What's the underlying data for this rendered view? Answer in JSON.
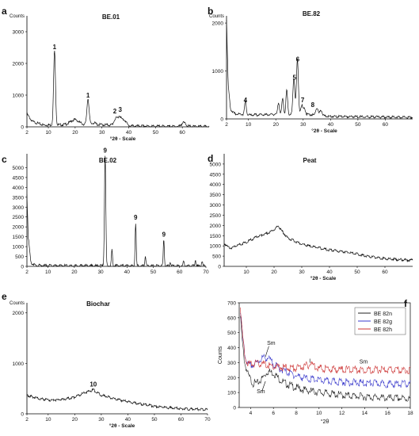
{
  "figure": {
    "panels": [
      {
        "letter": "a",
        "title": "BE.01",
        "ylabel": "Counts",
        "xlabel": "°2θ - Scale",
        "xlim": [
          2,
          70
        ],
        "ylim": [
          0,
          3500
        ],
        "xticks": [
          "2",
          "10",
          "20",
          "30",
          "40",
          "50",
          "60"
        ],
        "yticks": [
          "0",
          "1000",
          "2000",
          "3000"
        ],
        "baseline": [
          [
            2,
            420
          ],
          [
            4,
            180
          ],
          [
            8,
            70
          ],
          [
            12,
            70
          ],
          [
            20,
            90
          ],
          [
            30,
            80
          ],
          [
            40,
            40
          ],
          [
            50,
            30
          ],
          [
            70,
            20
          ]
        ],
        "peaks": [
          [
            12.3,
            2350,
            0.35
          ],
          [
            24.8,
            820,
            0.4
          ],
          [
            19.8,
            150,
            1.5
          ],
          [
            35.0,
            180,
            0.6
          ],
          [
            36.5,
            280,
            0.7
          ],
          [
            38.3,
            180,
            0.8
          ],
          [
            60.5,
            120,
            0.8
          ],
          [
            27.0,
            60,
            0.6
          ]
        ],
        "labels": [
          {
            "x": 12.3,
            "y": 2350,
            "text": "1"
          },
          {
            "x": 24.8,
            "y": 820,
            "text": "1"
          },
          {
            "x": 34.8,
            "y": 330,
            "text": "2"
          },
          {
            "x": 36.8,
            "y": 380,
            "text": "3"
          }
        ]
      },
      {
        "letter": "b",
        "title": "BE.82",
        "ylabel": "Counts",
        "xlabel": "°2θ - Scale",
        "xlim": [
          2,
          70
        ],
        "ylim": [
          0,
          2150
        ],
        "xticks": [
          "2",
          "10",
          "20",
          "30",
          "40",
          "50",
          "60"
        ],
        "yticks": [
          "0",
          "1000",
          "2000"
        ],
        "baseline": [
          [
            2,
            2100
          ],
          [
            2.6,
            700
          ],
          [
            3.5,
            200
          ],
          [
            5,
            120
          ],
          [
            10,
            90
          ],
          [
            20,
            100
          ],
          [
            30,
            110
          ],
          [
            40,
            60
          ],
          [
            70,
            40
          ]
        ],
        "peaks": [
          [
            8.9,
            280,
            0.3
          ],
          [
            21.0,
            260,
            0.3
          ],
          [
            22.5,
            330,
            0.3
          ],
          [
            24.0,
            500,
            0.3
          ],
          [
            26.6,
            750,
            0.35
          ],
          [
            27.9,
            1130,
            0.35
          ],
          [
            29.5,
            180,
            0.4
          ],
          [
            30.5,
            120,
            0.3
          ],
          [
            35.0,
            160,
            0.4
          ],
          [
            36.5,
            120,
            0.4
          ]
        ],
        "labels": [
          {
            "x": 8.9,
            "y": 280,
            "text": "4"
          },
          {
            "x": 26.8,
            "y": 750,
            "text": "5"
          },
          {
            "x": 28.0,
            "y": 1130,
            "text": "6"
          },
          {
            "x": 29.8,
            "y": 280,
            "text": "7"
          },
          {
            "x": 33.5,
            "y": 180,
            "text": "8"
          }
        ]
      },
      {
        "letter": "c",
        "title": "BE.02",
        "ylabel": "",
        "xlabel": "",
        "xlim": [
          2,
          70
        ],
        "ylim": [
          0,
          5700
        ],
        "xticks": [
          "2",
          "10",
          "20",
          "30",
          "40",
          "50",
          "60",
          "70"
        ],
        "yticks": [
          "0",
          "500",
          "1000",
          "1500",
          "2000",
          "2500",
          "3000",
          "3500",
          "4000",
          "4500",
          "5000"
        ],
        "baseline": [
          [
            2,
            3700
          ],
          [
            2.5,
            1500
          ],
          [
            3.5,
            200
          ],
          [
            5,
            80
          ],
          [
            10,
            60
          ],
          [
            40,
            50
          ],
          [
            70,
            40
          ]
        ],
        "peaks": [
          [
            31.7,
            5600,
            0.25
          ],
          [
            34.3,
            800,
            0.2
          ],
          [
            43.3,
            2200,
            0.2
          ],
          [
            47.0,
            500,
            0.2
          ],
          [
            54.0,
            1350,
            0.2
          ],
          [
            56.5,
            200,
            0.2
          ],
          [
            61.5,
            250,
            0.2
          ],
          [
            66.0,
            300,
            0.2
          ],
          [
            68.5,
            250,
            0.2
          ]
        ],
        "labels": [
          {
            "x": 31.7,
            "y": 5600,
            "text": "9"
          },
          {
            "x": 43.3,
            "y": 2200,
            "text": "9"
          },
          {
            "x": 54.0,
            "y": 1350,
            "text": "9"
          }
        ]
      },
      {
        "letter": "d",
        "title": "Peat",
        "ylabel": "",
        "xlabel": "°2θ - Scale",
        "xlim": [
          2,
          70
        ],
        "ylim": [
          0,
          5500
        ],
        "xticks": [
          "10",
          "20",
          "30",
          "40",
          "50",
          "60"
        ],
        "yticks": [
          "0",
          "500",
          "1000",
          "1500",
          "2000",
          "2500",
          "3000",
          "3500",
          "4000",
          "4500",
          "5000"
        ],
        "baseline": [
          [
            2,
            1150
          ],
          [
            4,
            900
          ],
          [
            6,
            1000
          ],
          [
            10,
            1200
          ],
          [
            14,
            1480
          ],
          [
            18,
            1650
          ],
          [
            20,
            1800
          ],
          [
            21.5,
            2000
          ],
          [
            22.5,
            1800
          ],
          [
            25,
            1400
          ],
          [
            30,
            1100
          ],
          [
            35,
            950
          ],
          [
            40,
            820
          ],
          [
            45,
            740
          ],
          [
            50,
            620
          ],
          [
            55,
            480
          ],
          [
            60,
            400
          ],
          [
            65,
            350
          ],
          [
            70,
            320
          ]
        ],
        "peaks": [],
        "labels": []
      },
      {
        "letter": "e",
        "title": "Biochar",
        "ylabel": "Counts",
        "xlabel": "°2θ - Scale",
        "xlim": [
          2,
          70
        ],
        "ylim": [
          0,
          2200
        ],
        "xticks": [
          "2",
          "10",
          "20",
          "30",
          "40",
          "50",
          "60",
          "70"
        ],
        "yticks": [
          "0",
          "1000",
          "2000"
        ],
        "baseline": [
          [
            2,
            380
          ],
          [
            5,
            330
          ],
          [
            10,
            280
          ],
          [
            15,
            290
          ],
          [
            20,
            340
          ],
          [
            25,
            450
          ],
          [
            27,
            480
          ],
          [
            30,
            380
          ],
          [
            35,
            300
          ],
          [
            40,
            250
          ],
          [
            45,
            200
          ],
          [
            50,
            160
          ],
          [
            55,
            130
          ],
          [
            60,
            110
          ],
          [
            65,
            100
          ],
          [
            70,
            90
          ]
        ],
        "peaks": [],
        "labels": [
          {
            "x": 27.0,
            "y": 480,
            "text": "10"
          }
        ]
      }
    ],
    "panel_f": {
      "letter": "f",
      "ylabel": "Counts",
      "xlabel": "°2θ",
      "xlim": [
        3,
        18
      ],
      "ylim": [
        0,
        700
      ],
      "xticks": [
        "4",
        "6",
        "8",
        "10",
        "12",
        "14",
        "16",
        "18"
      ],
      "yticks": [
        "0",
        "100",
        "200",
        "300",
        "400",
        "500",
        "600",
        "700"
      ],
      "annotations": [
        {
          "text": "Sm",
          "x": 5.8,
          "y": 420
        },
        {
          "text": "I",
          "x": 9.2,
          "y": 300
        },
        {
          "text": "Sm",
          "x": 13.9,
          "y": 295
        },
        {
          "text": "Sm",
          "x": 4.9,
          "y": 95
        }
      ],
      "series": [
        {
          "name": "BE 82n",
          "color": "#222222",
          "points": [
            [
              3.1,
              620
            ],
            [
              3.3,
              420
            ],
            [
              3.5,
              300
            ],
            [
              3.8,
              220
            ],
            [
              4.2,
              170
            ],
            [
              4.6,
              170
            ],
            [
              5.0,
              200
            ],
            [
              5.5,
              250
            ],
            [
              6.0,
              240
            ],
            [
              6.5,
              200
            ],
            [
              7,
              170
            ],
            [
              8,
              140
            ],
            [
              9,
              120
            ],
            [
              10,
              110
            ],
            [
              11,
              100
            ],
            [
              12,
              90
            ],
            [
              13,
              85
            ],
            [
              14,
              80
            ],
            [
              15,
              75
            ],
            [
              16,
              70
            ],
            [
              17,
              70
            ],
            [
              18,
              65
            ]
          ]
        },
        {
          "name": "BE 82g",
          "color": "#3a3acc",
          "points": [
            [
              3.1,
              650
            ],
            [
              3.3,
              480
            ],
            [
              3.5,
              350
            ],
            [
              3.8,
              290
            ],
            [
              4.2,
              290
            ],
            [
              4.6,
              310
            ],
            [
              5.0,
              340
            ],
            [
              5.5,
              340
            ],
            [
              6.0,
              300
            ],
            [
              6.5,
              270
            ],
            [
              7,
              250
            ],
            [
              8,
              220
            ],
            [
              9,
              200
            ],
            [
              10,
              190
            ],
            [
              11,
              180
            ],
            [
              12,
              180
            ],
            [
              13,
              175
            ],
            [
              14,
              170
            ],
            [
              15,
              170
            ],
            [
              16,
              165
            ],
            [
              17,
              165
            ],
            [
              18,
              165
            ]
          ]
        },
        {
          "name": "BE 82h",
          "color": "#cc3333",
          "points": [
            [
              3.1,
              690
            ],
            [
              3.3,
              480
            ],
            [
              3.5,
              340
            ],
            [
              3.8,
              300
            ],
            [
              4.2,
              300
            ],
            [
              5,
              300
            ],
            [
              6,
              280
            ],
            [
              7,
              275
            ],
            [
              8,
              270
            ],
            [
              9,
              290
            ],
            [
              9.3,
              300
            ],
            [
              10,
              270
            ],
            [
              11,
              265
            ],
            [
              12,
              262
            ],
            [
              13,
              262
            ],
            [
              14,
              260
            ],
            [
              15,
              260
            ],
            [
              16,
              258
            ],
            [
              17,
              258
            ],
            [
              18,
              258
            ]
          ]
        }
      ]
    }
  },
  "chart_data": [
    {
      "type": "line",
      "panel": "a",
      "title": "BE.01",
      "xlabel": "°2θ - Scale",
      "ylabel": "Counts",
      "xlim": [
        2,
        70
      ],
      "ylim": [
        0,
        3500
      ],
      "peaks": [
        {
          "x": 12.3,
          "y": 2350,
          "label": "1"
        },
        {
          "x": 24.8,
          "y": 820,
          "label": "1"
        },
        {
          "x": 34.8,
          "y": 180,
          "label": "2"
        },
        {
          "x": 36.5,
          "y": 280,
          "label": "3"
        }
      ]
    },
    {
      "type": "line",
      "panel": "b",
      "title": "BE.82",
      "xlabel": "°2θ - Scale",
      "ylabel": "Counts",
      "xlim": [
        2,
        70
      ],
      "ylim": [
        0,
        2150
      ],
      "peaks": [
        {
          "x": 8.9,
          "y": 280,
          "label": "4"
        },
        {
          "x": 26.6,
          "y": 750,
          "label": "5"
        },
        {
          "x": 27.9,
          "y": 1130,
          "label": "6"
        },
        {
          "x": 29.5,
          "y": 180,
          "label": "7"
        },
        {
          "x": 33.5,
          "y": 160,
          "label": "8"
        }
      ]
    },
    {
      "type": "line",
      "panel": "c",
      "title": "BE.02",
      "xlim": [
        2,
        70
      ],
      "ylim": [
        0,
        5700
      ],
      "peaks": [
        {
          "x": 31.7,
          "y": 5600,
          "label": "9"
        },
        {
          "x": 43.3,
          "y": 2200,
          "label": "9"
        },
        {
          "x": 54.0,
          "y": 1350,
          "label": "9"
        }
      ]
    },
    {
      "type": "line",
      "panel": "d",
      "title": "Peat",
      "xlabel": "°2θ - Scale",
      "xlim": [
        2,
        70
      ],
      "ylim": [
        0,
        5500
      ],
      "broad_maximum": {
        "x": 21.5,
        "y": 2000
      }
    },
    {
      "type": "line",
      "panel": "e",
      "title": "Biochar",
      "xlabel": "°2θ - Scale",
      "ylabel": "Counts",
      "xlim": [
        2,
        70
      ],
      "ylim": [
        0,
        2200
      ],
      "peaks": [
        {
          "x": 27.0,
          "y": 480,
          "label": "10"
        }
      ]
    },
    {
      "type": "line",
      "panel": "f",
      "xlabel": "°2θ",
      "ylabel": "Counts",
      "xlim": [
        3,
        18
      ],
      "ylim": [
        0,
        700
      ],
      "legend": [
        "BE 82n",
        "BE 82g",
        "BE 82h"
      ],
      "legend_position": "top-right"
    }
  ]
}
